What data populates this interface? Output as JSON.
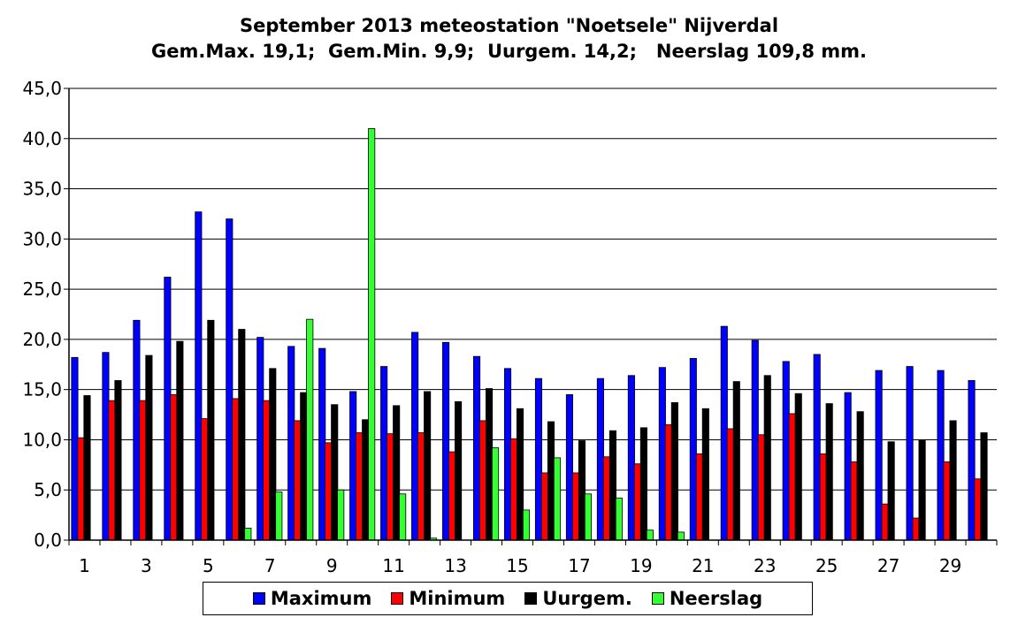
{
  "chart_data": {
    "type": "bar",
    "title": "September 2013 meteostation \"Noetsele\" Nijverdal",
    "subtitle": "Gem.Max. 19,1;  Gem.Min. 9,9;  Uurgem. 14,2;   Neerslag 109,8 mm.",
    "x": [
      1,
      2,
      3,
      4,
      5,
      6,
      7,
      8,
      9,
      10,
      11,
      12,
      13,
      14,
      15,
      16,
      17,
      18,
      19,
      20,
      21,
      22,
      23,
      24,
      25,
      26,
      27,
      28,
      29,
      30
    ],
    "x_tick_labels": [
      "1",
      "3",
      "5",
      "7",
      "9",
      "11",
      "13",
      "15",
      "17",
      "19",
      "21",
      "23",
      "25",
      "27",
      "29"
    ],
    "y_tick_labels": [
      "0,0",
      "5,0",
      "10,0",
      "15,0",
      "20,0",
      "25,0",
      "30,0",
      "35,0",
      "40,0",
      "45,0"
    ],
    "ylim": [
      0,
      45
    ],
    "grid": true,
    "legend_position": "bottom",
    "series": [
      {
        "name": "Maximum",
        "color": "#0000ff",
        "values": [
          18.2,
          18.7,
          21.9,
          26.2,
          32.7,
          32.0,
          20.2,
          19.3,
          19.1,
          14.8,
          17.3,
          20.7,
          19.7,
          18.3,
          17.1,
          16.1,
          14.5,
          16.1,
          16.4,
          17.2,
          18.1,
          21.3,
          19.9,
          17.8,
          18.5,
          14.7,
          16.9,
          17.3,
          16.9,
          15.9
        ]
      },
      {
        "name": "Minimum",
        "color": "#ff0000",
        "values": [
          10.2,
          13.9,
          13.9,
          14.5,
          12.1,
          14.1,
          13.9,
          11.9,
          9.7,
          10.7,
          10.6,
          10.7,
          8.8,
          11.9,
          10.1,
          6.7,
          6.7,
          8.3,
          7.6,
          11.5,
          8.6,
          11.1,
          10.5,
          12.6,
          8.6,
          7.8,
          3.6,
          2.2,
          7.8,
          6.1
        ]
      },
      {
        "name": "Uurgem.",
        "color": "#000000",
        "values": [
          14.4,
          15.9,
          18.4,
          19.8,
          21.9,
          21.0,
          17.1,
          14.7,
          13.5,
          12.0,
          13.4,
          14.8,
          13.8,
          15.1,
          13.1,
          11.8,
          9.9,
          10.9,
          11.2,
          13.7,
          13.1,
          15.8,
          16.4,
          14.6,
          13.6,
          12.8,
          9.8,
          10.0,
          11.9,
          10.7
        ]
      },
      {
        "name": "Neerslag",
        "color": "#33ff33",
        "values": [
          0,
          0,
          0,
          0,
          0,
          1.2,
          4.8,
          22.0,
          5.0,
          41.0,
          4.6,
          0.2,
          0,
          9.2,
          3.0,
          8.2,
          4.6,
          4.2,
          1.0,
          0.8,
          0,
          0,
          0,
          0,
          0,
          0,
          0,
          0,
          0,
          0
        ]
      }
    ]
  }
}
